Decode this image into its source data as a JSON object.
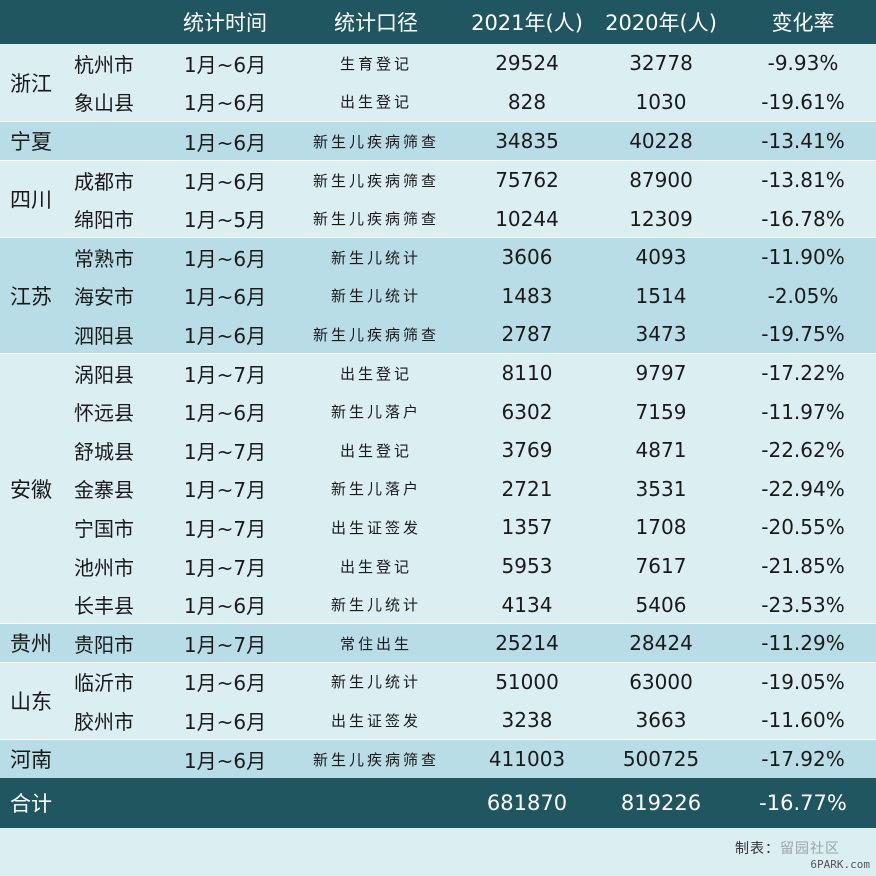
{
  "header": {
    "province": "",
    "city": "",
    "period": "统计时间",
    "method": "统计口径",
    "y2021": "2021年(人)",
    "y2020": "2020年(人)",
    "rate": "变化率"
  },
  "groups": [
    {
      "province": "浙江",
      "rows": [
        {
          "city": "杭州市",
          "period": "1月~6月",
          "method": "生育登记",
          "y2021": "29524",
          "y2020": "32778",
          "rate": "-9.93%"
        },
        {
          "city": "象山县",
          "period": "1月~6月",
          "method": "出生登记",
          "y2021": "828",
          "y2020": "1030",
          "rate": "-19.61%"
        }
      ]
    },
    {
      "province": "宁夏",
      "rows": [
        {
          "city": "",
          "period": "1月~6月",
          "method": "新生儿疾病筛查",
          "y2021": "34835",
          "y2020": "40228",
          "rate": "-13.41%"
        }
      ]
    },
    {
      "province": "四川",
      "rows": [
        {
          "city": "成都市",
          "period": "1月~6月",
          "method": "新生儿疾病筛查",
          "y2021": "75762",
          "y2020": "87900",
          "rate": "-13.81%"
        },
        {
          "city": "绵阳市",
          "period": "1月~5月",
          "method": "新生儿疾病筛查",
          "y2021": "10244",
          "y2020": "12309",
          "rate": "-16.78%"
        }
      ]
    },
    {
      "province": "江苏",
      "rows": [
        {
          "city": "常熟市",
          "period": "1月~6月",
          "method": "新生儿统计",
          "y2021": "3606",
          "y2020": "4093",
          "rate": "-11.90%"
        },
        {
          "city": "海安市",
          "period": "1月~6月",
          "method": "新生儿统计",
          "y2021": "1483",
          "y2020": "1514",
          "rate": "-2.05%"
        },
        {
          "city": "泗阳县",
          "period": "1月~6月",
          "method": "新生儿疾病筛查",
          "y2021": "2787",
          "y2020": "3473",
          "rate": "-19.75%"
        }
      ]
    },
    {
      "province": "安徽",
      "rows": [
        {
          "city": "涡阳县",
          "period": "1月~7月",
          "method": "出生登记",
          "y2021": "8110",
          "y2020": "9797",
          "rate": "-17.22%"
        },
        {
          "city": "怀远县",
          "period": "1月~6月",
          "method": "新生儿落户",
          "y2021": "6302",
          "y2020": "7159",
          "rate": "-11.97%"
        },
        {
          "city": "舒城县",
          "period": "1月~7月",
          "method": "出生登记",
          "y2021": "3769",
          "y2020": "4871",
          "rate": "-22.62%"
        },
        {
          "city": "金寨县",
          "period": "1月~7月",
          "method": "新生儿落户",
          "y2021": "2721",
          "y2020": "3531",
          "rate": "-22.94%"
        },
        {
          "city": "宁国市",
          "period": "1月~7月",
          "method": "出生证签发",
          "y2021": "1357",
          "y2020": "1708",
          "rate": "-20.55%"
        },
        {
          "city": "池州市",
          "period": "1月~7月",
          "method": "出生登记",
          "y2021": "5953",
          "y2020": "7617",
          "rate": "-21.85%"
        },
        {
          "city": "长丰县",
          "period": "1月~6月",
          "method": "新生儿统计",
          "y2021": "4134",
          "y2020": "5406",
          "rate": "-23.53%"
        }
      ]
    },
    {
      "province": "贵州",
      "rows": [
        {
          "city": "贵阳市",
          "period": "1月~7月",
          "method": "常住出生",
          "y2021": "25214",
          "y2020": "28424",
          "rate": "-11.29%"
        }
      ]
    },
    {
      "province": "山东",
      "rows": [
        {
          "city": "临沂市",
          "period": "1月~6月",
          "method": "新生儿统计",
          "y2021": "51000",
          "y2020": "63000",
          "rate": "-19.05%"
        },
        {
          "city": "胶州市",
          "period": "1月~6月",
          "method": "出生证签发",
          "y2021": "3238",
          "y2020": "3663",
          "rate": "-11.60%"
        }
      ]
    },
    {
      "province": "河南",
      "rows": [
        {
          "city": "",
          "period": "1月~6月",
          "method": "新生儿疾病筛查",
          "y2021": "411003",
          "y2020": "500725",
          "rate": "-17.92%"
        }
      ]
    }
  ],
  "total": {
    "label": "合计",
    "y2021": "681870",
    "y2020": "819226",
    "rate": "-16.77%"
  },
  "footer": {
    "credit": "制表：",
    "watermark": "留园社区",
    "site": "6PARK.com"
  },
  "colors": {
    "header_bg": "#1f5660",
    "band_dark": "#b8dde6",
    "band_light": "#dbeef1"
  }
}
